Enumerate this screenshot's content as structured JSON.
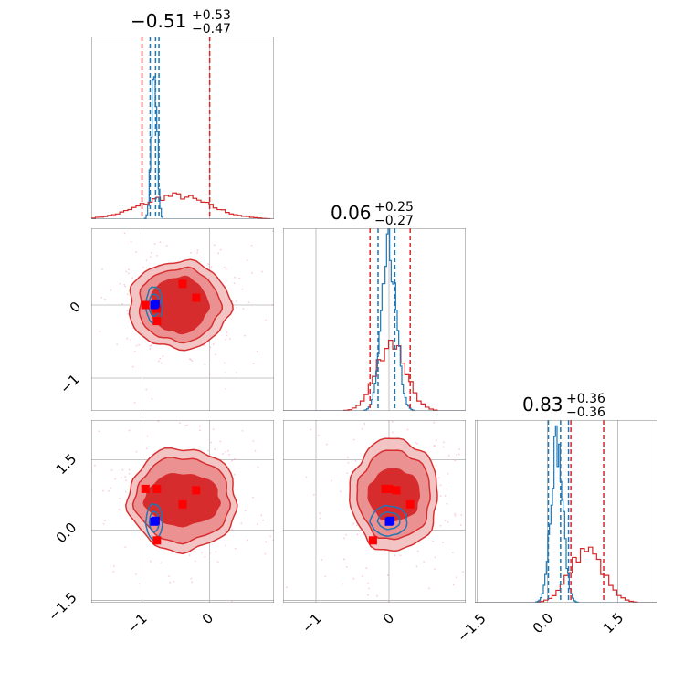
{
  "chart_data": {
    "type": "corner",
    "parameters": 3,
    "grid": true,
    "series": [
      {
        "name": "",
        "color": "#1f77b4",
        "role": "narrow posterior"
      },
      {
        "name": "",
        "color": "#d62728",
        "role": "broad posterior"
      }
    ],
    "axis_ticks": {
      "p0": [
        -1,
        0
      ],
      "p1": [
        -1,
        0
      ],
      "p2": [
        -1.5,
        0.0,
        1.5
      ]
    },
    "tick_labels": {
      "p0_x": [
        "−1",
        "0"
      ],
      "p1_x": [
        "−1",
        "0"
      ],
      "p1_y": [
        "−1",
        "0"
      ],
      "p2_x": [
        "−1.5",
        "0.0",
        "1.5"
      ],
      "p2_y": [
        "−1.5",
        "0.0",
        "1.5"
      ]
    },
    "axis_ranges": {
      "p0": [
        -1.75,
        0.95
      ],
      "p1": [
        -1.45,
        1.05
      ],
      "p2": [
        -1.55,
        2.35
      ]
    },
    "titles": [
      {
        "median": "−0.51",
        "plus": "+0.53",
        "minus": "−0.47"
      },
      {
        "median": "0.06",
        "plus": "+0.25",
        "minus": "−0.27"
      },
      {
        "median": "0.83",
        "plus": "+0.36",
        "minus": "−0.36"
      }
    ],
    "quantiles": {
      "p0": {
        "red": [
          -1.0,
          0.0
        ],
        "blue": [
          -0.88,
          -0.8,
          -0.75
        ]
      },
      "p1": {
        "red": [
          -0.26,
          0.29
        ],
        "blue": [
          -0.15,
          0.08
        ]
      },
      "p2": {
        "red": [
          0.5,
          1.2
        ],
        "blue": [
          0.02,
          0.28,
          0.45
        ]
      }
    },
    "histograms": {
      "p0_blue": {
        "center": -0.82,
        "sigma": 0.04,
        "peak": 1.0
      },
      "p0_red": {
        "center": -0.51,
        "sigma": 0.5,
        "peak": 0.15
      },
      "p1_blue": {
        "center": 0.0,
        "sigma": 0.1,
        "peak": 1.0
      },
      "p1_red": {
        "center": 0.03,
        "sigma": 0.2,
        "peak": 0.45
      },
      "p2_blue": {
        "center": 0.2,
        "sigma": 0.13,
        "peak": 1.0
      },
      "p2_red": {
        "center": 0.83,
        "sigma": 0.35,
        "peak": 0.34
      }
    },
    "markers": {
      "red": [
        {
          "p0": -0.4,
          "p1": 0.29,
          "p2": 0.55
        },
        {
          "p0": -0.2,
          "p1": 0.1,
          "p2": 0.85
        },
        {
          "p0": -0.78,
          "p1": -0.22,
          "p2": -0.22
        },
        {
          "p0": -0.95,
          "p1": 0.0,
          "p2": 0.88
        },
        {
          "p0": -0.78,
          "p1": -0.05,
          "p2": 0.88
        }
      ],
      "blue": [
        {
          "p0": -0.82,
          "p1": 0.0,
          "p2": 0.18
        },
        {
          "p0": -0.8,
          "p1": 0.02,
          "p2": 0.2
        }
      ]
    },
    "contours": {
      "p1_vs_p0": {
        "red_center": [
          -0.45,
          0.0
        ],
        "red_radii": [
          [
            0.75,
            0.6
          ],
          [
            0.6,
            0.5
          ],
          [
            0.42,
            0.38
          ]
        ],
        "blue_center": [
          -0.82,
          0.0
        ],
        "blue_radii": [
          [
            0.12,
            0.25
          ],
          [
            0.08,
            0.15
          ]
        ]
      },
      "p2_vs_p0": {
        "red_center": [
          -0.4,
          0.65
        ],
        "red_radii": [
          [
            0.8,
            1.1
          ],
          [
            0.7,
            0.9
          ],
          [
            0.55,
            0.55
          ]
        ],
        "blue_center": [
          -0.82,
          0.18
        ],
        "blue_radii": [
          [
            0.12,
            0.38
          ],
          [
            0.07,
            0.22
          ]
        ]
      },
      "p2_vs_p1": {
        "red_center": [
          0.07,
          0.75
        ],
        "red_radii": [
          [
            0.6,
            1.2
          ],
          [
            0.5,
            0.95
          ],
          [
            0.35,
            0.55
          ]
        ],
        "blue_center": [
          0.0,
          0.2
        ],
        "blue_radii": [
          [
            0.25,
            0.32
          ],
          [
            0.15,
            0.18
          ]
        ]
      }
    }
  }
}
